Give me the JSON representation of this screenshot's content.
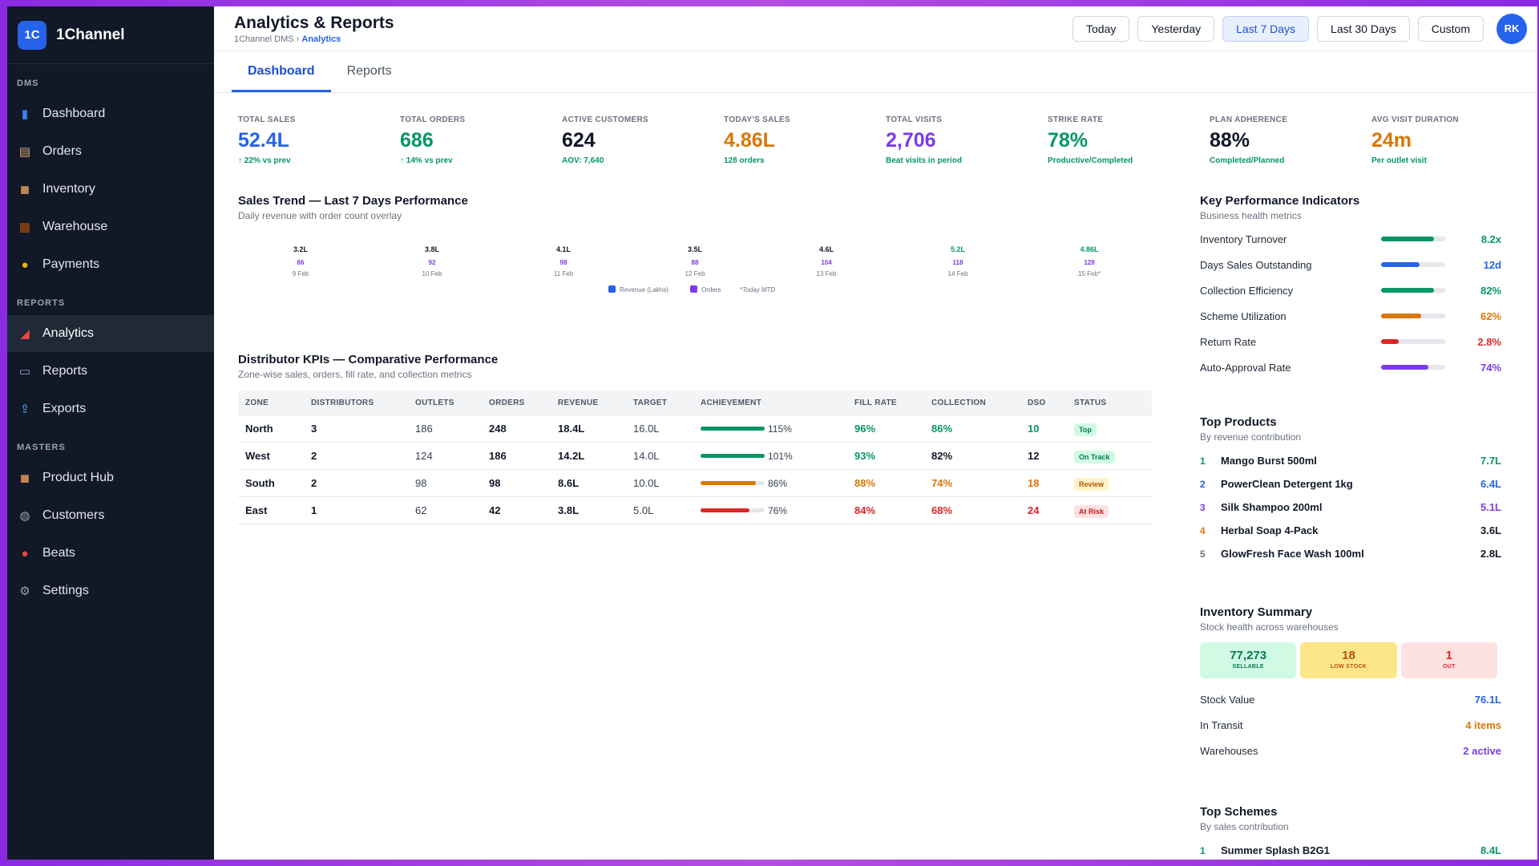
{
  "brand": {
    "logo": "1C",
    "name": "1Channel"
  },
  "sidebar": {
    "sections": [
      {
        "title": "DMS",
        "items": [
          {
            "label": "Dashboard",
            "icon": "bar-chart-icon",
            "glyph": "▮"
          },
          {
            "label": "Orders",
            "icon": "clipboard-icon",
            "glyph": "▤"
          },
          {
            "label": "Inventory",
            "icon": "box-icon",
            "glyph": "◼"
          },
          {
            "label": "Warehouse",
            "icon": "warehouse-icon",
            "glyph": "▦"
          },
          {
            "label": "Payments",
            "icon": "money-bag-icon",
            "glyph": "●"
          }
        ]
      },
      {
        "title": "REPORTS",
        "items": [
          {
            "label": "Analytics",
            "icon": "chart-increasing-icon",
            "glyph": "◢",
            "active": true
          },
          {
            "label": "Reports",
            "icon": "document-icon",
            "glyph": "▭"
          },
          {
            "label": "Exports",
            "icon": "outbox-tray-icon",
            "glyph": "⇪"
          }
        ]
      },
      {
        "title": "MASTERS",
        "items": [
          {
            "label": "Product Hub",
            "icon": "box-icon",
            "glyph": "◼"
          },
          {
            "label": "Customers",
            "icon": "people-icon",
            "glyph": "◍"
          },
          {
            "label": "Beats",
            "icon": "map-pin-icon",
            "glyph": "●"
          },
          {
            "label": "Settings",
            "icon": "gear-icon",
            "glyph": "⚙"
          }
        ]
      }
    ]
  },
  "header": {
    "title": "Analytics & Reports",
    "breadcrumb_root": "1Channel DMS",
    "breadcrumb_sep": "›",
    "breadcrumb_current": "Analytics",
    "ranges": [
      "Today",
      "Yesterday",
      "Last 7 Days",
      "Last 30 Days",
      "Custom"
    ],
    "active_range": "Last 7 Days",
    "avatar": "RK"
  },
  "tabs": [
    {
      "label": "Dashboard",
      "active": true
    },
    {
      "label": "Reports",
      "active": false
    }
  ],
  "kpis": [
    {
      "label": "TOTAL SALES",
      "value": "52.4L",
      "sub": "↑ 22% vs prev",
      "color": "#2563eb",
      "sub_color": "#059669"
    },
    {
      "label": "TOTAL ORDERS",
      "value": "686",
      "sub": "↑ 14% vs prev",
      "color": "#059669",
      "sub_color": "#059669"
    },
    {
      "label": "ACTIVE CUSTOMERS",
      "value": "624",
      "sub": "AOV: 7,640",
      "color": "#111827",
      "sub_color": "#059669"
    },
    {
      "label": "TODAY'S SALES",
      "value": "4.86L",
      "sub": "128 orders",
      "color": "#d97706",
      "sub_color": "#059669"
    },
    {
      "label": "TOTAL VISITS",
      "value": "2,706",
      "sub": "Beat visits in period",
      "color": "#7c3aed",
      "sub_color": "#059669"
    },
    {
      "label": "STRIKE RATE",
      "value": "78%",
      "sub": "Productive/Completed",
      "color": "#059669",
      "sub_color": "#059669"
    },
    {
      "label": "PLAN ADHERENCE",
      "value": "88%",
      "sub": "Completed/Planned",
      "color": "#111827",
      "sub_color": "#059669"
    },
    {
      "label": "AVG VISIT DURATION",
      "value": "24m",
      "sub": "Per outlet visit",
      "color": "#d97706",
      "sub_color": "#059669"
    }
  ],
  "sales_trend": {
    "title": "Sales Trend — Last 7 Days Performance",
    "subtitle": "Daily revenue with order count overlay",
    "legend": {
      "revenue": "Revenue (Lakhs)",
      "orders": "Orders",
      "note": "*Today MTD"
    }
  },
  "chart_data": {
    "type": "bar",
    "title": "Sales Trend — Last 7 Days Performance",
    "categories": [
      "9 Feb",
      "10 Feb",
      "11 Feb",
      "12 Feb",
      "13 Feb",
      "14 Feb",
      "15 Feb*"
    ],
    "series": [
      {
        "name": "Revenue (Lakhs)",
        "values": [
          3.2,
          3.8,
          4.1,
          3.5,
          4.6,
          5.2,
          4.86
        ],
        "labels": [
          "3.2L",
          "3.8L",
          "4.1L",
          "3.5L",
          "4.6L",
          "5.2L",
          "4.86L"
        ]
      },
      {
        "name": "Orders",
        "values": [
          86,
          92,
          98,
          88,
          104,
          118,
          128
        ]
      }
    ],
    "highlight_color": "#059669",
    "revenue_color": "#2563eb",
    "orders_color": "#7c3aed"
  },
  "distributor": {
    "title": "Distributor KPIs — Comparative Performance",
    "subtitle": "Zone-wise sales, orders, fill rate, and collection metrics",
    "columns": [
      "ZONE",
      "DISTRIBUTORS",
      "OUTLETS",
      "ORDERS",
      "REVENUE",
      "TARGET",
      "ACHIEVEMENT",
      "FILL RATE",
      "COLLECTION",
      "DSO",
      "STATUS"
    ],
    "rows": [
      {
        "zone": "North",
        "distributors": "3",
        "outlets": "186",
        "orders": "248",
        "revenue": "18.4L",
        "target": "16.0L",
        "achievement": "115%",
        "ach_value": 1.0,
        "ach_color": "#059669",
        "fill_rate": "96%",
        "fill_color": "#059669",
        "collection": "86%",
        "coll_color": "#059669",
        "dso": "10",
        "dso_color": "#059669",
        "status": "Top",
        "status_bg": "#d1fae5",
        "status_fg": "#047857"
      },
      {
        "zone": "West",
        "distributors": "2",
        "outlets": "124",
        "orders": "186",
        "revenue": "14.2L",
        "target": "14.0L",
        "achievement": "101%",
        "ach_value": 1.0,
        "ach_color": "#059669",
        "fill_rate": "93%",
        "fill_color": "#059669",
        "collection": "82%",
        "coll_color": "#111827",
        "dso": "12",
        "dso_color": "#111827",
        "status": "On Track",
        "status_bg": "#d1fae5",
        "status_fg": "#047857"
      },
      {
        "zone": "South",
        "distributors": "2",
        "outlets": "98",
        "orders": "98",
        "revenue": "8.6L",
        "target": "10.0L",
        "achievement": "86%",
        "ach_value": 0.86,
        "ach_color": "#d97706",
        "fill_rate": "88%",
        "fill_color": "#d97706",
        "collection": "74%",
        "coll_color": "#d97706",
        "dso": "18",
        "dso_color": "#d97706",
        "status": "Review",
        "status_bg": "#fef3c7",
        "status_fg": "#b45309"
      },
      {
        "zone": "East",
        "distributors": "1",
        "outlets": "62",
        "orders": "42",
        "revenue": "3.8L",
        "target": "5.0L",
        "achievement": "76%",
        "ach_value": 0.76,
        "ach_color": "#dc2626",
        "fill_rate": "84%",
        "fill_color": "#dc2626",
        "collection": "68%",
        "coll_color": "#dc2626",
        "dso": "24",
        "dso_color": "#dc2626",
        "status": "At Risk",
        "status_bg": "#fee2e2",
        "status_fg": "#b91c1c"
      }
    ]
  },
  "key_indicators": {
    "title": "Key Performance Indicators",
    "subtitle": "Business health metrics",
    "items": [
      {
        "name": "Inventory Turnover",
        "value": "8.2x",
        "level": 0.82,
        "color": "#059669"
      },
      {
        "name": "Days Sales Outstanding",
        "value": "12d",
        "level": 0.6,
        "color": "#2563eb"
      },
      {
        "name": "Collection Efficiency",
        "value": "82%",
        "level": 0.82,
        "color": "#059669"
      },
      {
        "name": "Scheme Utilization",
        "value": "62%",
        "level": 0.62,
        "color": "#d97706"
      },
      {
        "name": "Return Rate",
        "value": "2.8%",
        "level": 0.28,
        "color": "#dc2626"
      },
      {
        "name": "Auto-Approval Rate",
        "value": "74%",
        "level": 0.74,
        "color": "#7c3aed"
      }
    ]
  },
  "top_products": {
    "title": "Top Products",
    "subtitle": "By revenue contribution",
    "items": [
      {
        "rank": "1",
        "name": "Mango Burst 500ml",
        "value": "7.7L",
        "color": "#059669"
      },
      {
        "rank": "2",
        "name": "PowerClean Detergent 1kg",
        "value": "6.4L",
        "color": "#2563eb"
      },
      {
        "rank": "3",
        "name": "Silk Shampoo 200ml",
        "value": "5.1L",
        "color": "#7c3aed"
      },
      {
        "rank": "4",
        "name": "Herbal Soap 4-Pack",
        "value": "3.6L",
        "color": "#d97706"
      },
      {
        "rank": "5",
        "name": "GlowFresh Face Wash 100ml",
        "value": "2.8L",
        "color": "#6b7280"
      }
    ]
  },
  "inventory_summary": {
    "title": "Inventory Summary",
    "subtitle": "Stock health across warehouses",
    "tiles": [
      {
        "value": "77,273",
        "label": "SELLABLE",
        "bg": "#d1fae5",
        "fg": "#047857"
      },
      {
        "value": "18",
        "label": "LOW STOCK",
        "bg": "#fde68a",
        "fg": "#b45309"
      },
      {
        "value": "1",
        "label": "OUT",
        "bg": "#fee2e2",
        "fg": "#dc2626"
      }
    ],
    "rows": [
      {
        "key": "Stock Value",
        "value": "76.1L",
        "color": "#2563eb"
      },
      {
        "key": "In Transit",
        "value": "4 items",
        "color": "#d97706"
      },
      {
        "key": "Warehouses",
        "value": "2 active",
        "color": "#7c3aed"
      }
    ]
  },
  "top_schemes": {
    "title": "Top Schemes",
    "subtitle": "By sales contribution",
    "first_item": {
      "rank": "1",
      "name": "Summer Splash B2G1",
      "value": "8.4L"
    }
  }
}
